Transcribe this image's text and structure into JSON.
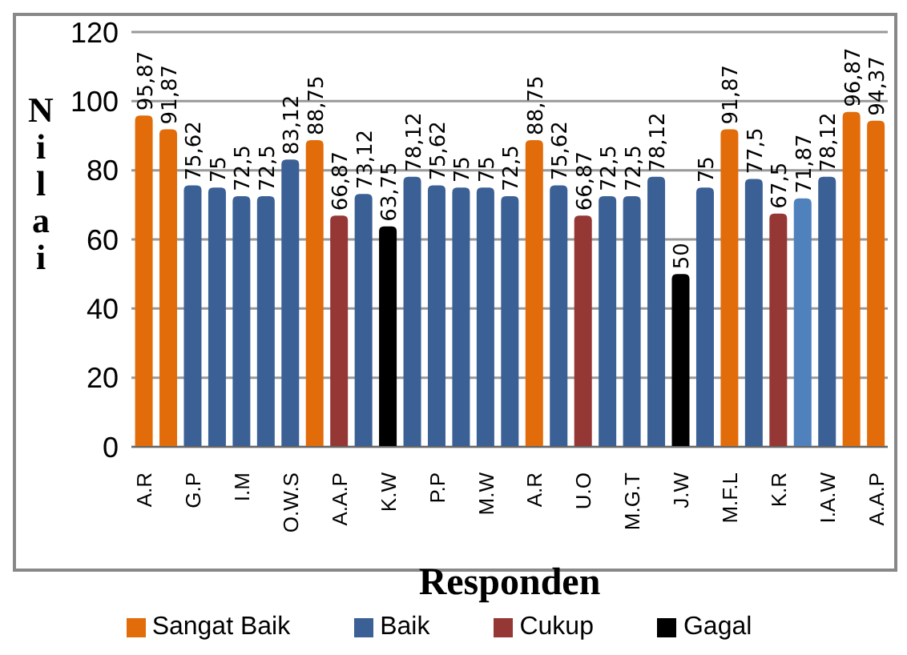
{
  "chart_data": {
    "type": "bar",
    "xlabel": "Responden",
    "ylabel": "Nilai",
    "stacked": true,
    "categories": [
      "A.R",
      null,
      "G.P",
      null,
      "I.M",
      null,
      "O.W.S",
      null,
      "A.A.P",
      null,
      "K.W",
      null,
      "P.P",
      null,
      "M.W",
      null,
      "A.R",
      null,
      "U.O",
      null,
      "M.G.T",
      null,
      "J.W",
      null,
      "M.F.L",
      null,
      "K.R",
      null,
      "I.A.W",
      null,
      "A.A.P"
    ],
    "series": [
      {
        "name": "Sangat Baik",
        "color": "#e36c0a",
        "values": [
          95.87,
          91.87,
          null,
          null,
          null,
          null,
          null,
          88.75,
          null,
          null,
          null,
          null,
          null,
          null,
          null,
          null,
          88.75,
          null,
          null,
          null,
          null,
          null,
          null,
          null,
          91.87,
          null,
          null,
          null,
          null,
          96.87,
          94.37
        ],
        "value_labels": [
          "95,87",
          "91,87",
          null,
          null,
          null,
          null,
          null,
          "88,75",
          null,
          null,
          null,
          null,
          null,
          null,
          null,
          null,
          "88,75",
          null,
          null,
          null,
          null,
          null,
          null,
          null,
          "91,87",
          null,
          null,
          null,
          null,
          "96,87",
          "94,37"
        ]
      },
      {
        "name": "Baik",
        "color": "#3a6095",
        "values": [
          null,
          null,
          75.62,
          75,
          72.5,
          72.5,
          83.12,
          null,
          null,
          73.12,
          null,
          78.12,
          75.62,
          75,
          75,
          72.5,
          null,
          75.62,
          null,
          72.5,
          72.5,
          78.12,
          null,
          75,
          null,
          77.5,
          null,
          null,
          78.12,
          null,
          null
        ],
        "value_labels": [
          null,
          null,
          "75,62",
          "75",
          "72,5",
          "72,5",
          "83,12",
          null,
          null,
          "73,12",
          null,
          "78,12",
          "75,62",
          "75",
          "75",
          "72,5",
          null,
          "75,62",
          null,
          "72,5",
          "72,5",
          "78,12",
          null,
          "75",
          null,
          "77,5",
          null,
          null,
          "78,12",
          null,
          null
        ]
      },
      {
        "name": "Cukup",
        "color": "#953735",
        "values": [
          null,
          null,
          null,
          null,
          null,
          null,
          null,
          null,
          66.87,
          null,
          null,
          null,
          null,
          null,
          null,
          null,
          null,
          null,
          66.87,
          null,
          null,
          null,
          null,
          null,
          null,
          null,
          67.5,
          null,
          null,
          null,
          null
        ],
        "value_labels": [
          null,
          null,
          null,
          null,
          null,
          null,
          null,
          null,
          "66,87",
          null,
          null,
          null,
          null,
          null,
          null,
          null,
          null,
          null,
          "66,87",
          null,
          null,
          null,
          null,
          null,
          null,
          null,
          "67,5",
          null,
          null,
          null,
          null
        ]
      },
      {
        "name": "Gagal",
        "color": "#000000",
        "values": [
          null,
          null,
          null,
          null,
          null,
          null,
          null,
          null,
          null,
          null,
          63.75,
          null,
          null,
          null,
          null,
          null,
          null,
          null,
          null,
          null,
          null,
          null,
          50,
          null,
          null,
          null,
          null,
          null,
          null,
          null,
          null
        ],
        "value_labels": [
          null,
          null,
          null,
          null,
          null,
          null,
          null,
          null,
          null,
          null,
          "63,75",
          null,
          null,
          null,
          null,
          null,
          null,
          null,
          null,
          null,
          null,
          null,
          "50",
          null,
          null,
          null,
          null,
          null,
          null,
          null,
          null
        ]
      },
      {
        "color": "#4f81bd",
        "values": [
          null,
          null,
          null,
          null,
          null,
          null,
          null,
          null,
          null,
          null,
          null,
          null,
          null,
          null,
          null,
          null,
          null,
          null,
          null,
          null,
          null,
          null,
          null,
          null,
          null,
          null,
          null,
          71.87,
          null,
          null,
          null
        ],
        "value_labels": [
          null,
          null,
          null,
          null,
          null,
          null,
          null,
          null,
          null,
          null,
          null,
          null,
          null,
          null,
          null,
          null,
          null,
          null,
          null,
          null,
          null,
          null,
          null,
          null,
          null,
          null,
          null,
          "71,87",
          null,
          null,
          null
        ]
      }
    ],
    "ylim": [
      0,
      120
    ],
    "yticks": [
      0,
      20,
      40,
      60,
      80,
      100,
      120
    ],
    "grid": "y",
    "legend": "bottom"
  }
}
